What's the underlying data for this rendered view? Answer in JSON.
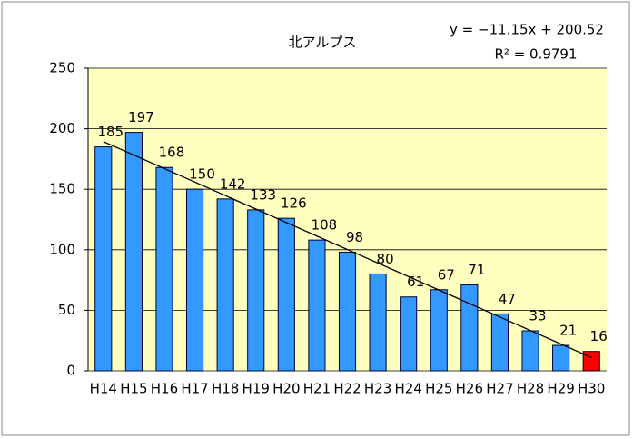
{
  "chart_data": {
    "type": "bar",
    "title": "北アルプス",
    "categories": [
      "H14",
      "H15",
      "H16",
      "H17",
      "H18",
      "H19",
      "H20",
      "H21",
      "H22",
      "H23",
      "H24",
      "H25",
      "H26",
      "H27",
      "H28",
      "H29",
      "H30"
    ],
    "values": [
      185,
      197,
      168,
      150,
      142,
      133,
      126,
      108,
      98,
      80,
      61,
      67,
      71,
      47,
      33,
      21,
      16
    ],
    "color": "#3399ff",
    "highlight_color": "#ff0000",
    "highlight_index": 16,
    "ylim": [
      0,
      250
    ],
    "yticks": [
      0,
      50,
      100,
      150,
      200,
      250
    ],
    "grid": true,
    "trendline": {
      "label": "y = −11.15x + 200.52",
      "slope": -11.15,
      "intercept": 200.52,
      "r2_label": "R² = 0.9791"
    }
  }
}
